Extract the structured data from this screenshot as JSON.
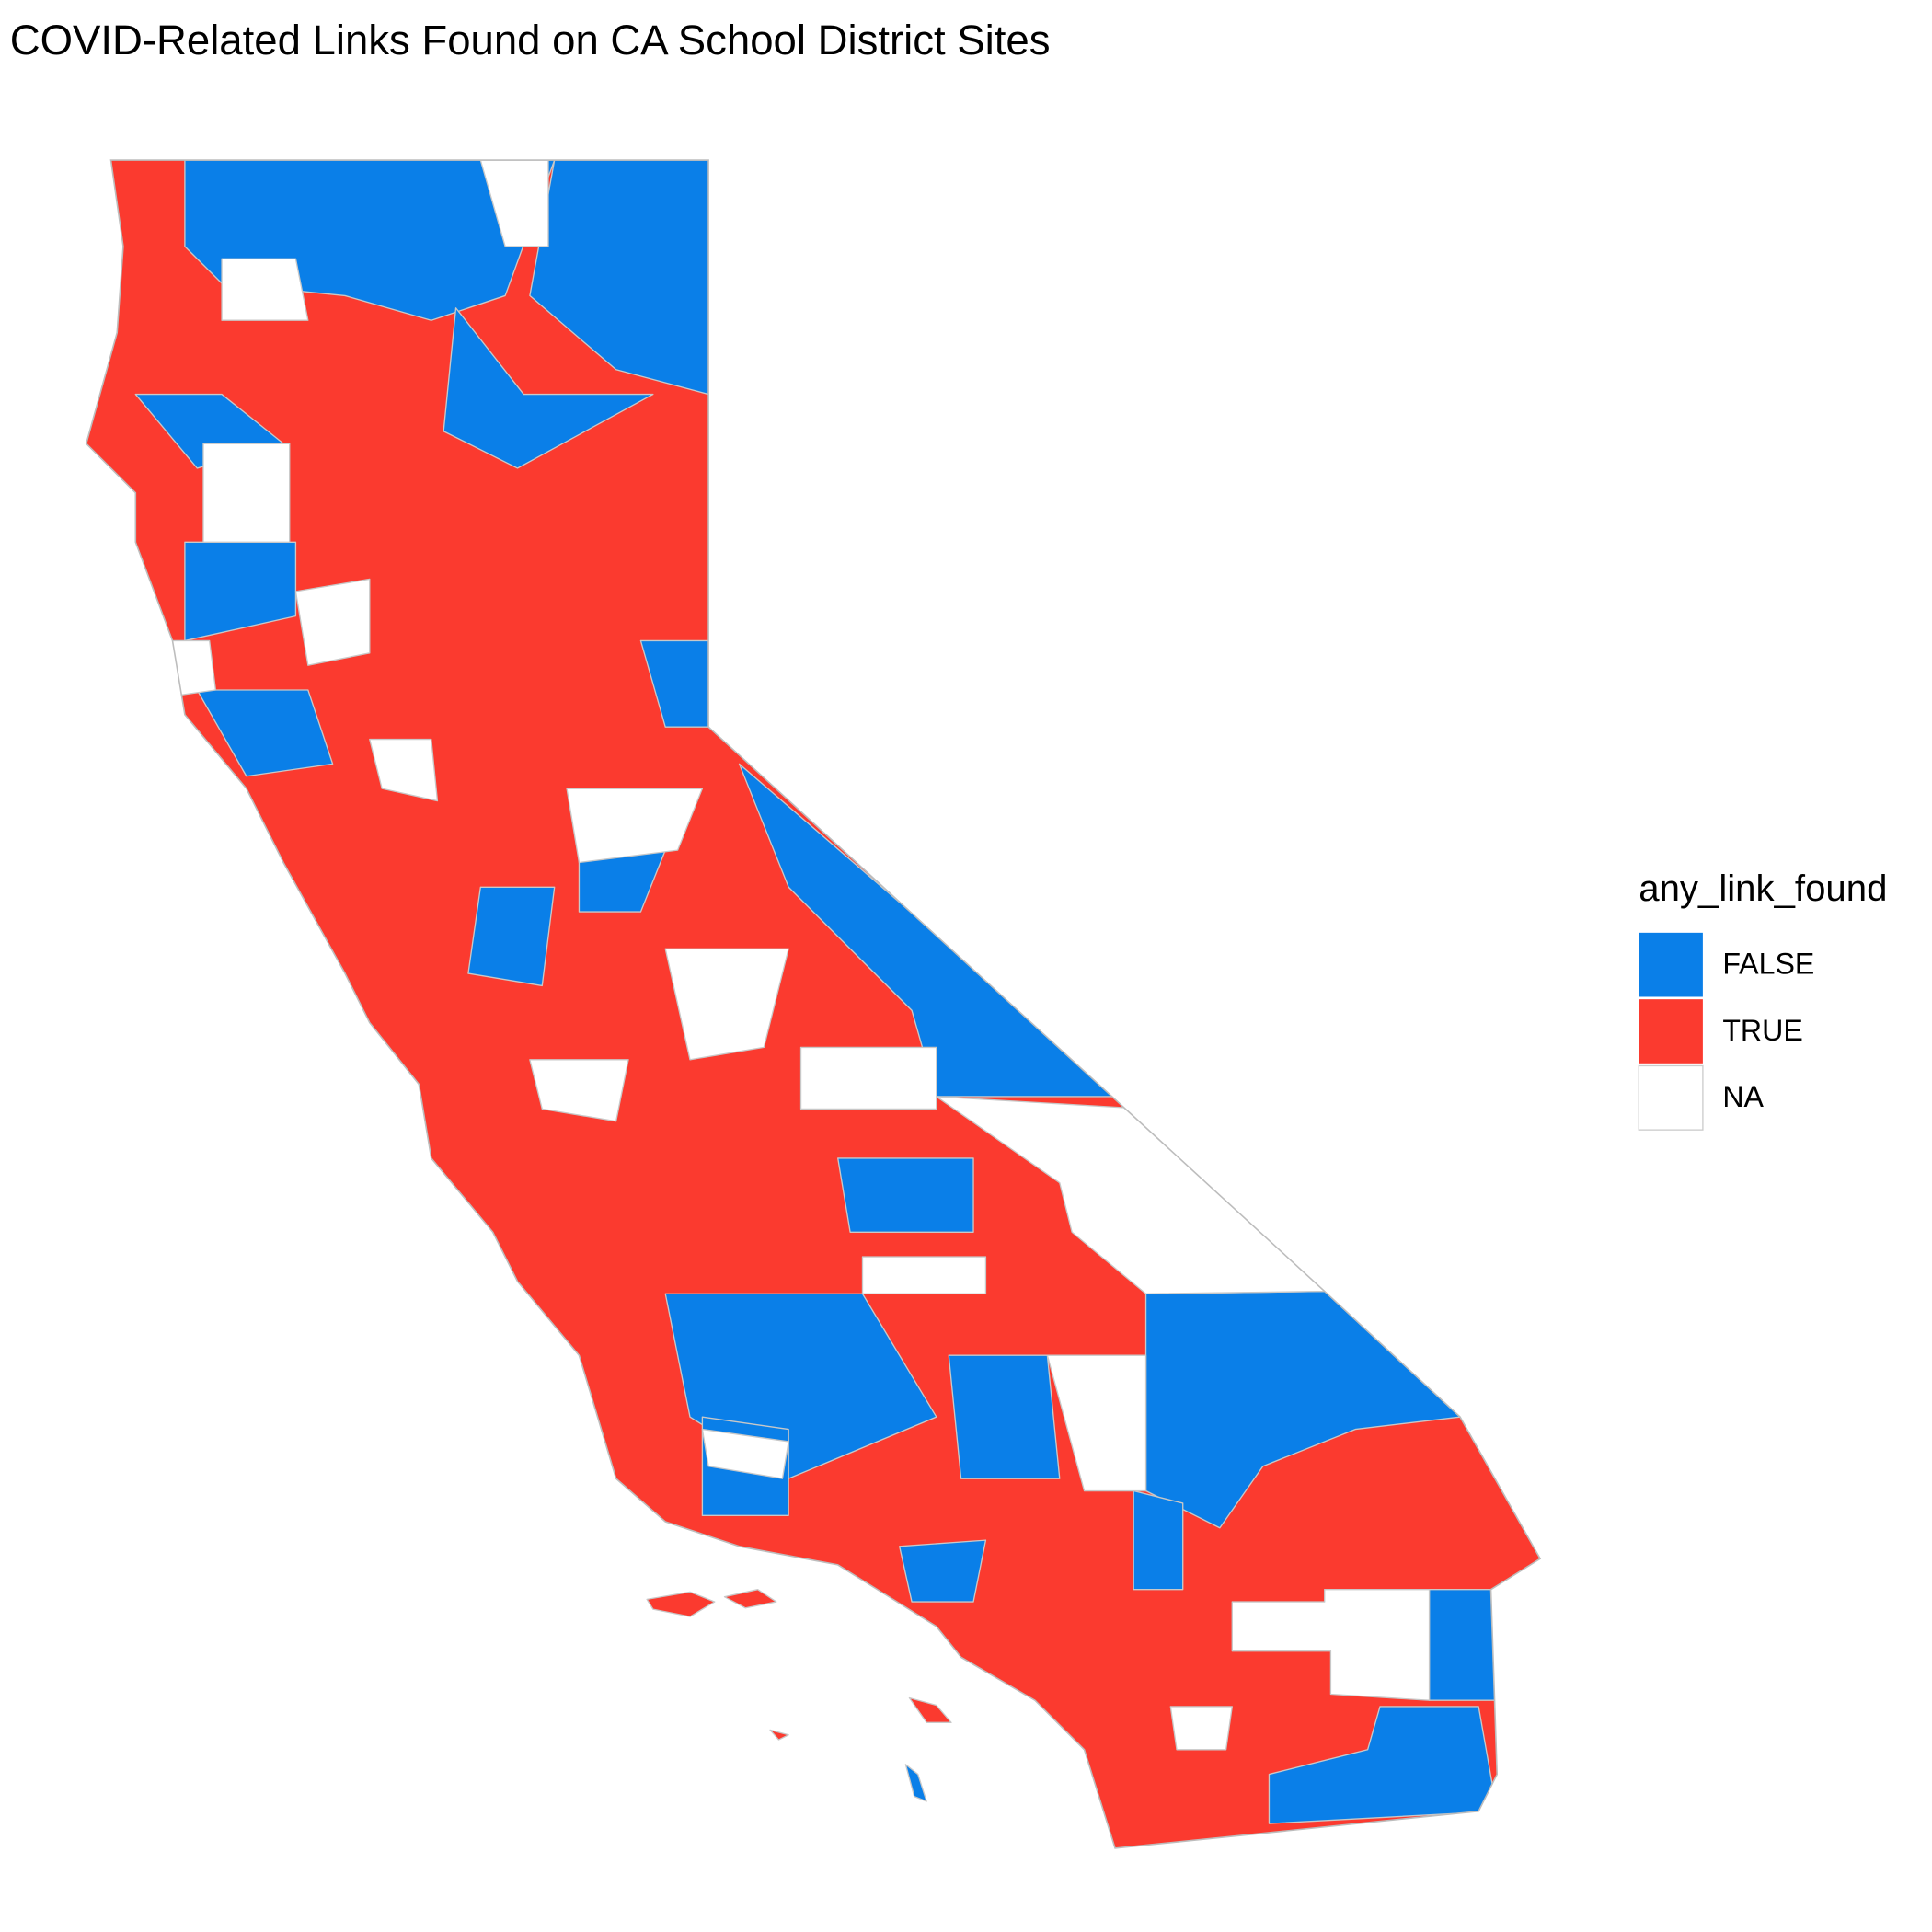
{
  "title": "COVID-Related Links Found on CA School District Sites",
  "legend": {
    "title": "any_link_found",
    "entries": [
      {
        "label": "FALSE",
        "color": "#0a7fe8"
      },
      {
        "label": "TRUE",
        "color": "#fb3a2f"
      },
      {
        "label": "NA",
        "color": "#ffffff"
      }
    ]
  }
}
